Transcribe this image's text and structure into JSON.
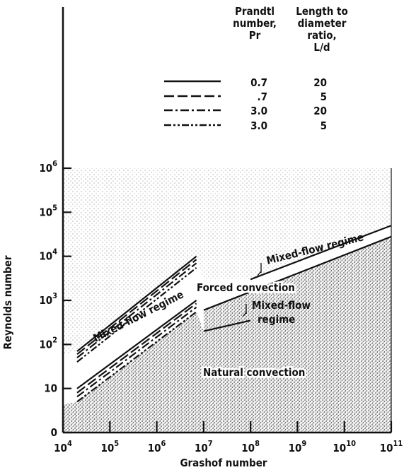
{
  "chart_data": {
    "type": "line",
    "xlabel": "Grashof number",
    "ylabel": "Reynolds number",
    "x_scale": "log",
    "y_scale": "log",
    "xlim": [
      10000,
      100000000000
    ],
    "ylim": [
      1,
      1000000
    ],
    "x_ticks": [
      {
        "value": 10000,
        "base": "10",
        "exp": "4"
      },
      {
        "value": 100000,
        "base": "10",
        "exp": "5"
      },
      {
        "value": 1000000,
        "base": "10",
        "exp": "6"
      },
      {
        "value": 10000000,
        "base": "10",
        "exp": "7"
      },
      {
        "value": 100000000,
        "base": "10",
        "exp": "8"
      },
      {
        "value": 1000000000,
        "base": "10",
        "exp": "9"
      },
      {
        "value": 10000000000,
        "base": "10",
        "exp": "10"
      },
      {
        "value": 100000000000,
        "base": "10",
        "exp": "11"
      }
    ],
    "y_ticks": [
      {
        "value": 1,
        "base": "0",
        "exp": ""
      },
      {
        "value": 10,
        "base": "10",
        "exp": ""
      },
      {
        "value": 100,
        "base": "10",
        "exp": "2"
      },
      {
        "value": 1000,
        "base": "10",
        "exp": "3"
      },
      {
        "value": 10000,
        "base": "10",
        "exp": "4"
      },
      {
        "value": 100000,
        "base": "10",
        "exp": "5"
      },
      {
        "value": 1000000,
        "base": "10",
        "exp": "6"
      }
    ],
    "legend": {
      "headers": {
        "pr": [
          "Prandtl",
          "number,",
          "Pr"
        ],
        "ld": [
          "Length to",
          "diameter",
          "ratio,",
          "L/d"
        ]
      },
      "entries": [
        {
          "pr": "0.7",
          "ld": "20",
          "style": "solid"
        },
        {
          "pr": ".7",
          "ld": "5",
          "style": "dashed"
        },
        {
          "pr": "3.0",
          "ld": "20",
          "style": "dashdot"
        },
        {
          "pr": "3.0",
          "ld": "5",
          "style": "dashdotdot"
        }
      ]
    },
    "series": [
      {
        "group": "upper-left",
        "style": "solid",
        "points": [
          [
            20000,
            70
          ],
          [
            7000000,
            10000
          ]
        ]
      },
      {
        "group": "upper-left",
        "style": "dashed",
        "points": [
          [
            20000,
            60
          ],
          [
            7000000,
            8500
          ]
        ]
      },
      {
        "group": "upper-left",
        "style": "dashdot",
        "points": [
          [
            20000,
            50
          ],
          [
            7000000,
            7000
          ]
        ]
      },
      {
        "group": "upper-left",
        "style": "dashdotdot",
        "points": [
          [
            20000,
            40
          ],
          [
            7000000,
            5500
          ]
        ]
      },
      {
        "group": "lower-left",
        "style": "solid",
        "points": [
          [
            20000,
            10
          ],
          [
            7000000,
            1000
          ]
        ]
      },
      {
        "group": "lower-left",
        "style": "dashed",
        "points": [
          [
            20000,
            8
          ],
          [
            7000000,
            850
          ]
        ]
      },
      {
        "group": "lower-left",
        "style": "dashdot",
        "points": [
          [
            20000,
            6.5
          ],
          [
            7000000,
            700
          ]
        ]
      },
      {
        "group": "lower-left",
        "style": "dashdotdot",
        "points": [
          [
            20000,
            5
          ],
          [
            7000000,
            550
          ]
        ]
      },
      {
        "group": "upper-right",
        "style": "solid",
        "points": [
          [
            100000000,
            3000
          ],
          [
            100000000000,
            50000
          ]
        ]
      },
      {
        "group": "lower-right",
        "style": "solid",
        "points": [
          [
            10000000,
            600
          ],
          [
            100000000000,
            28000
          ]
        ]
      },
      {
        "group": "lower-right-lower",
        "style": "solid",
        "points": [
          [
            10000000,
            200
          ],
          [
            100000000,
            350
          ]
        ]
      }
    ],
    "annotations": {
      "forced": "Forced convection",
      "natural": "Natural convection",
      "mixed_left": "Mixed-flow regime",
      "mixed_right_top": "Mixed-flow regime",
      "mixed_right_bottom": [
        "Mixed-flow",
        "regime"
      ]
    }
  }
}
